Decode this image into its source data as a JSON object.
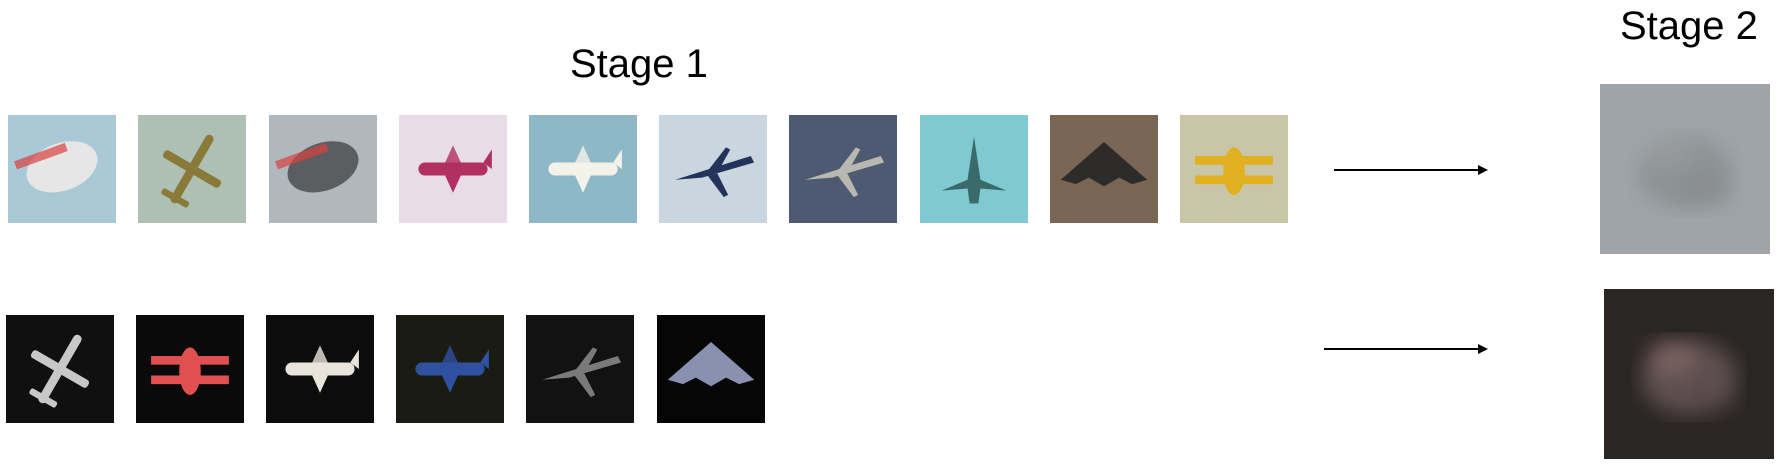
{
  "labels": {
    "stage1": "Stage 1",
    "stage2": "Stage 2"
  },
  "rows": [
    {
      "name": "light-background",
      "images": [
        {
          "icon": "airship-icon",
          "bg": "#a9c9d6",
          "fg": "#e6e6e6"
        },
        {
          "icon": "airplane-icon",
          "bg": "#aebfb4",
          "fg": "#8a7a3a"
        },
        {
          "icon": "airship-icon",
          "bg": "#b0b8be",
          "fg": "#5a5e60"
        },
        {
          "icon": "airliner-icon",
          "bg": "#e8dde6",
          "fg": "#b03060"
        },
        {
          "icon": "airliner-icon",
          "bg": "#8fb8c6",
          "fg": "#f2f2ea"
        },
        {
          "icon": "jet-icon",
          "bg": "#c9d6e0",
          "fg": "#22345a"
        },
        {
          "icon": "jet-icon",
          "bg": "#4e5a72",
          "fg": "#b8b8b0"
        },
        {
          "icon": "fighter-icon",
          "bg": "#7fcad0",
          "fg": "#3a6a6a"
        },
        {
          "icon": "stealth-bomber-icon",
          "bg": "#7a6654",
          "fg": "#2e2c2a"
        },
        {
          "icon": "biplane-icon",
          "bg": "#c9c6a8",
          "fg": "#e0b020"
        }
      ],
      "output": {
        "icon": "blurry-mean-image-light",
        "bg": "#9ea4a8",
        "fg": "#8a8e90"
      }
    },
    {
      "name": "dark-background",
      "images": [
        {
          "icon": "airplane-icon",
          "bg": "#101010",
          "fg": "#c8c8c8"
        },
        {
          "icon": "biplane-icon",
          "bg": "#0a0a0a",
          "fg": "#e05050"
        },
        {
          "icon": "airliner-icon",
          "bg": "#0c0c0c",
          "fg": "#e8e4da"
        },
        {
          "icon": "airliner-icon",
          "bg": "#1a1c14",
          "fg": "#3050a0"
        },
        {
          "icon": "jet-icon",
          "bg": "#121212",
          "fg": "#7a7a7a"
        },
        {
          "icon": "stealth-bomber-icon",
          "bg": "#060606",
          "fg": "#8a90b0"
        }
      ],
      "output": {
        "icon": "blurry-mean-image-dark",
        "bg": "#2a2624",
        "fg": "#6a5a5a"
      }
    }
  ]
}
